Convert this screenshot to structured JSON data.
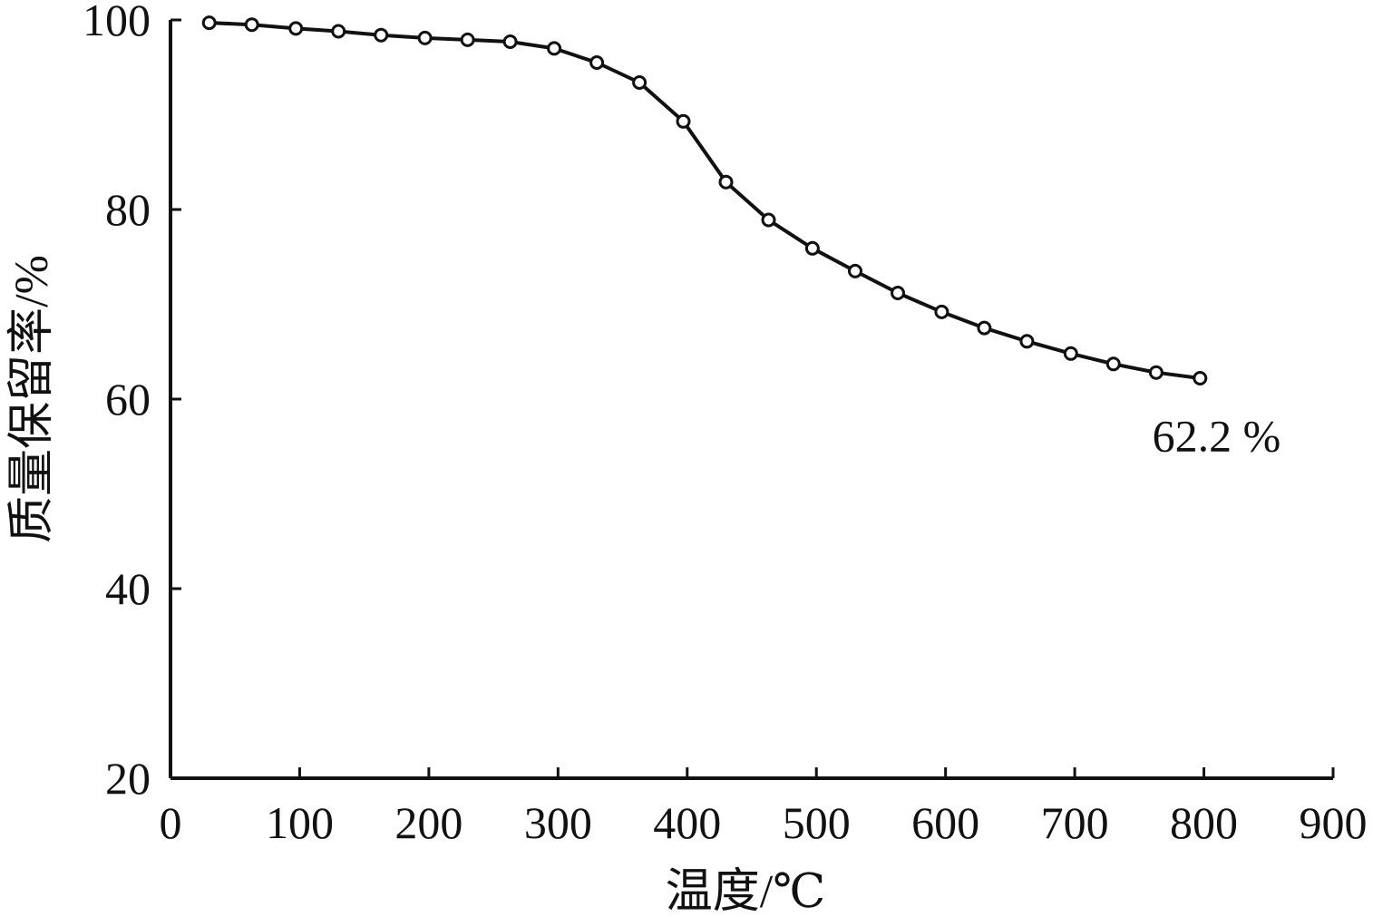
{
  "chart_data": {
    "type": "line",
    "xlabel": "温度/℃",
    "ylabel": "质量保留率/%",
    "xlim": [
      0,
      900
    ],
    "ylim": [
      20,
      100
    ],
    "x_ticks": [
      "0",
      "100",
      "200",
      "300",
      "400",
      "500",
      "600",
      "700",
      "800",
      "900"
    ],
    "y_ticks": [
      "20",
      "40",
      "60",
      "80",
      "100"
    ],
    "grid": false,
    "legend": "none",
    "series": [
      {
        "color": "#111111",
        "marker": "open-circle",
        "x": [
          30,
          63,
          97,
          130,
          163,
          197,
          230,
          263,
          297,
          330,
          363,
          397,
          430,
          463,
          497,
          530,
          563,
          597,
          630,
          663,
          697,
          730,
          763,
          797
        ],
        "y": [
          99.7,
          99.5,
          99.1,
          98.8,
          98.4,
          98.1,
          97.9,
          97.7,
          97.0,
          95.5,
          93.4,
          89.3,
          82.9,
          78.9,
          75.9,
          73.5,
          71.2,
          69.2,
          67.5,
          66.1,
          64.8,
          63.7,
          62.8,
          62.2
        ]
      }
    ],
    "annotations": [
      {
        "text": "62.2 %",
        "x": 760,
        "y": 54.5
      }
    ]
  }
}
